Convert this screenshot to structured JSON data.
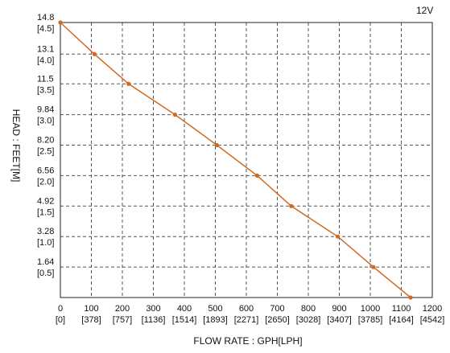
{
  "chart_data": {
    "type": "line",
    "voltage_label": "12V",
    "xlabel": "FLOW RATE : GPH[LPH]",
    "ylabel": "HEAD : FEET[M]",
    "xlim": [
      0,
      1200
    ],
    "ylim": [
      0,
      14.8
    ],
    "grid": true,
    "legend": "none",
    "line_color": "#d2691e",
    "grid_color": "#555555",
    "x_ticks": [
      {
        "value": 0,
        "label": "0",
        "sublabel": "[0]"
      },
      {
        "value": 100,
        "label": "100",
        "sublabel": "[378]"
      },
      {
        "value": 200,
        "label": "200",
        "sublabel": "[757]"
      },
      {
        "value": 300,
        "label": "300",
        "sublabel": "[1136]"
      },
      {
        "value": 400,
        "label": "400",
        "sublabel": "[1514]"
      },
      {
        "value": 500,
        "label": "500",
        "sublabel": "[1893]"
      },
      {
        "value": 600,
        "label": "600",
        "sublabel": "[2271]"
      },
      {
        "value": 700,
        "label": "700",
        "sublabel": "[2650]"
      },
      {
        "value": 800,
        "label": "800",
        "sublabel": "[3028]"
      },
      {
        "value": 900,
        "label": "900",
        "sublabel": "[3407]"
      },
      {
        "value": 1000,
        "label": "1000",
        "sublabel": "[3785]"
      },
      {
        "value": 1100,
        "label": "1100",
        "sublabel": "[4164]"
      },
      {
        "value": 1200,
        "label": "1200",
        "sublabel": "[4542]"
      }
    ],
    "y_ticks": [
      {
        "value": 14.8,
        "label": "14.8",
        "sublabel": "[4.5]"
      },
      {
        "value": 13.1,
        "label": "13.1",
        "sublabel": "[4.0]"
      },
      {
        "value": 11.5,
        "label": "11.5",
        "sublabel": "[3.5]"
      },
      {
        "value": 9.84,
        "label": "9.84",
        "sublabel": "[3.0]"
      },
      {
        "value": 8.2,
        "label": "8.20",
        "sublabel": "[2.5]"
      },
      {
        "value": 6.56,
        "label": "6.56",
        "sublabel": "[2.0]"
      },
      {
        "value": 4.92,
        "label": "4.92",
        "sublabel": "[1.5]"
      },
      {
        "value": 3.28,
        "label": "3.28",
        "sublabel": "[1.0]"
      },
      {
        "value": 1.64,
        "label": "1.64",
        "sublabel": "[0.5]"
      }
    ],
    "series": [
      {
        "x": [
          0,
          110,
          220,
          370,
          505,
          635,
          745,
          895,
          1010,
          1130
        ],
        "y": [
          14.8,
          13.1,
          11.5,
          9.84,
          8.2,
          6.56,
          4.92,
          3.28,
          1.64,
          0
        ]
      }
    ]
  }
}
